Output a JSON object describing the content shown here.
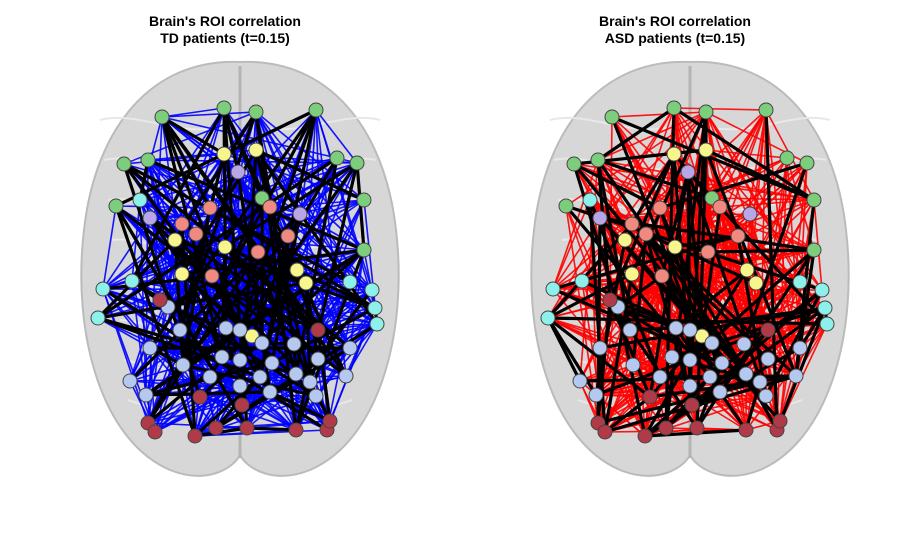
{
  "panels": [
    {
      "id": "td",
      "title_line1": "Brain's ROI correlation",
      "title_line2": "TD patients (t=0.15)",
      "edge_color": "#0000ff",
      "strong_edge_color": "#000000"
    },
    {
      "id": "asd",
      "title_line1": "Brain's ROI correlation",
      "title_line2": "ASD patients (t=0.15)",
      "edge_color": "#ff0000",
      "strong_edge_color": "#000000"
    }
  ],
  "colors": {
    "brain_fill": "#d3d3d3",
    "brain_outline": "#b4b4b4",
    "node_stroke": "#444444",
    "node_groups": {
      "green": "#7ccd7c",
      "yellow": "#f6f68c",
      "salmon": "#f08a80",
      "lavender": "#b9a6e8",
      "cyan": "#8ef0ea",
      "lightblue": "#b4c8f0",
      "darkred": "#b03a48"
    }
  }
}
